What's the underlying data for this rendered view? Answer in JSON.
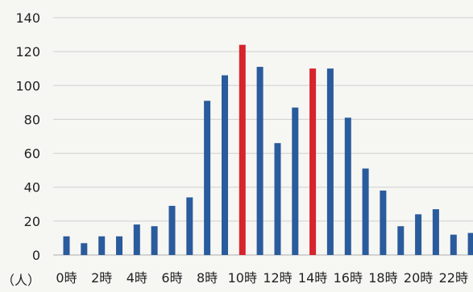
{
  "chart_data": {
    "type": "bar",
    "categories": [
      "0時",
      "1時",
      "2時",
      "3時",
      "4時",
      "5時",
      "6時",
      "7時",
      "8時",
      "9時",
      "10時",
      "11時",
      "12時",
      "13時",
      "14時",
      "15時",
      "16時",
      "17時",
      "18時",
      "19時",
      "20時",
      "21時",
      "22時",
      "23時"
    ],
    "x_tick_labels": [
      "0時",
      "2時",
      "4時",
      "6時",
      "8時",
      "10時",
      "12時",
      "14時",
      "16時",
      "18時",
      "20時",
      "22時"
    ],
    "values": [
      11,
      7,
      11,
      11,
      18,
      17,
      29,
      34,
      91,
      106,
      124,
      111,
      66,
      87,
      110,
      110,
      81,
      51,
      38,
      17,
      24,
      27,
      12,
      13
    ],
    "highlight_categories": [
      "10時",
      "14時"
    ],
    "ylim": [
      0,
      140
    ],
    "y_ticks": [
      0,
      20,
      40,
      60,
      80,
      100,
      120,
      140
    ],
    "ylabel": "（人）",
    "xlabel": "",
    "title": "",
    "grid": true,
    "colors": {
      "bar": "#2a5b9c",
      "highlight": "#d6242c",
      "grid": "#cfcfcf",
      "text": "#222222"
    }
  }
}
